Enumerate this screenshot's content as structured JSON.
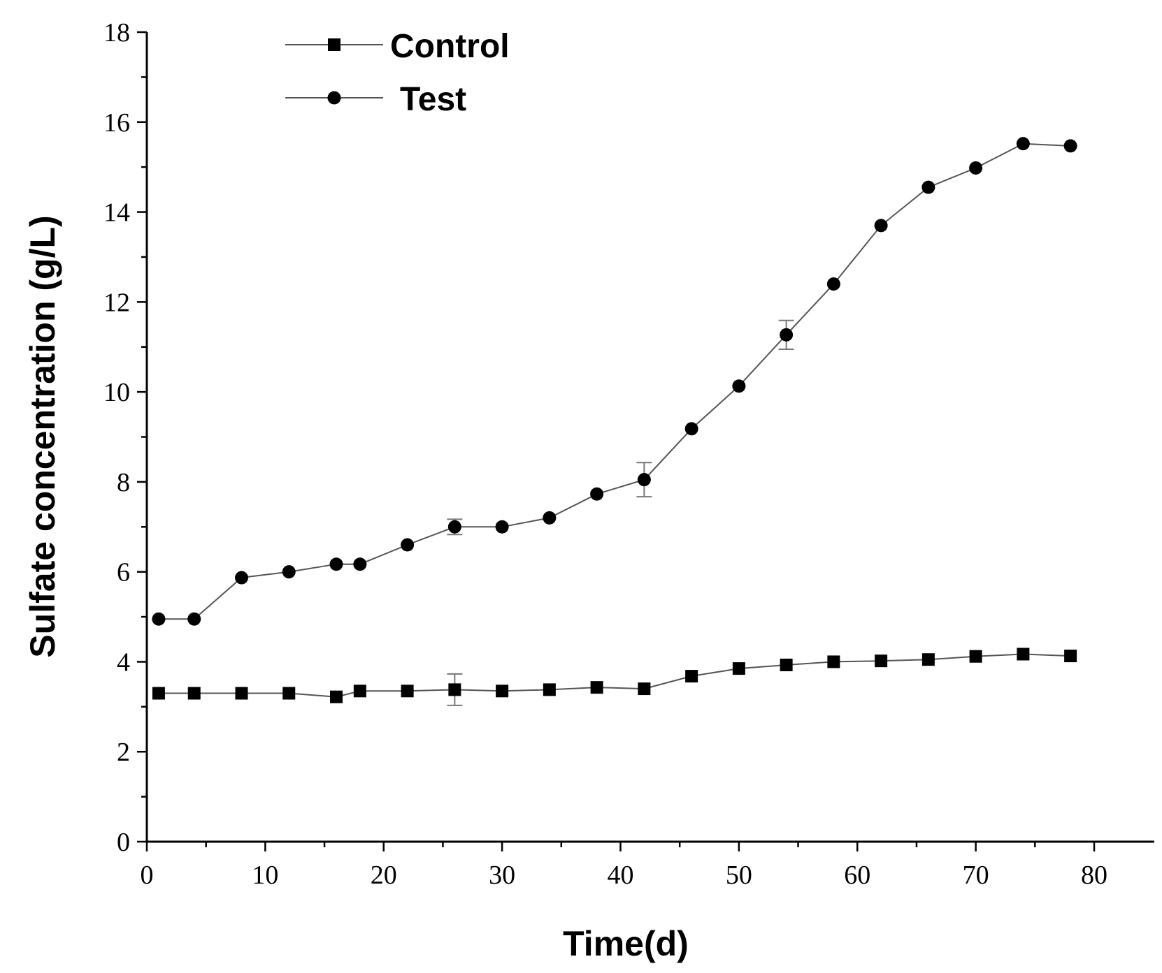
{
  "chart_data": {
    "type": "line",
    "title": "",
    "xlabel": "Time(d)",
    "ylabel": "Sulfate concentration (g/L)",
    "xlim": [
      0,
      85
    ],
    "ylim": [
      0,
      18
    ],
    "xticks": [
      0,
      10,
      20,
      30,
      40,
      50,
      60,
      70,
      80
    ],
    "yticks": [
      0,
      2,
      4,
      6,
      8,
      10,
      12,
      14,
      16,
      18
    ],
    "x": [
      1,
      4,
      8,
      12,
      16,
      18,
      22,
      26,
      30,
      34,
      38,
      42,
      46,
      50,
      54,
      58,
      62,
      66,
      70,
      74,
      78
    ],
    "series": [
      {
        "name": "Control",
        "marker": "square",
        "values": [
          3.3,
          3.3,
          3.3,
          3.3,
          3.22,
          3.35,
          3.35,
          3.38,
          3.35,
          3.38,
          3.43,
          3.4,
          3.68,
          3.85,
          3.93,
          4.0,
          4.02,
          4.05,
          4.12,
          4.17,
          4.13
        ],
        "errors": [
          0,
          0,
          0,
          0,
          0,
          0,
          0,
          0.35,
          0,
          0,
          0,
          0,
          0,
          0,
          0,
          0,
          0,
          0,
          0,
          0,
          0
        ]
      },
      {
        "name": "Test",
        "marker": "circle",
        "values": [
          4.95,
          4.95,
          5.87,
          6.0,
          6.17,
          6.17,
          6.6,
          7.0,
          7.0,
          7.2,
          7.73,
          8.05,
          9.18,
          10.13,
          11.27,
          12.4,
          13.7,
          14.55,
          14.98,
          15.52,
          15.47
        ],
        "errors": [
          0,
          0,
          0,
          0,
          0,
          0,
          0,
          0.17,
          0,
          0,
          0,
          0.38,
          0,
          0,
          0.32,
          0,
          0,
          0,
          0,
          0,
          0
        ]
      }
    ],
    "legend_position": "top-left"
  }
}
